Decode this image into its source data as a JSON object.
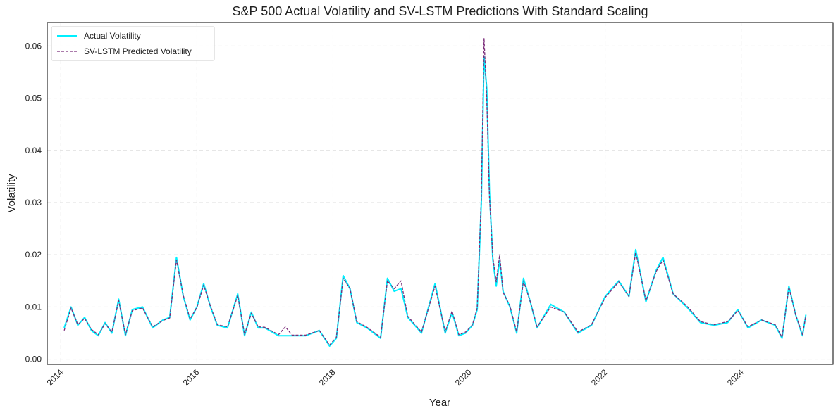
{
  "chart_data": {
    "type": "line",
    "title": "S&P 500 Actual Volatility and SV-LSTM Predictions With Standard Scaling",
    "xlabel": "Year",
    "ylabel": "Volatility",
    "xlim": [
      2013.8,
      2025.35
    ],
    "ylim": [
      -0.001,
      0.0645
    ],
    "x_ticks": [
      "2014",
      "2016",
      "2018",
      "2020",
      "2022",
      "2024"
    ],
    "y_ticks": [
      "0.00",
      "0.01",
      "0.02",
      "0.03",
      "0.04",
      "0.05",
      "0.06"
    ],
    "grid": true,
    "legend": "top-left",
    "colors": {
      "actual": "#00f0ff",
      "predicted": "#7b2d7a"
    },
    "series": [
      {
        "name": "Actual Volatility",
        "style": "solid",
        "x": [
          2014.05,
          2014.15,
          2014.25,
          2014.35,
          2014.45,
          2014.55,
          2014.65,
          2014.75,
          2014.85,
          2014.95,
          2015.05,
          2015.2,
          2015.35,
          2015.5,
          2015.6,
          2015.7,
          2015.8,
          2015.9,
          2016.0,
          2016.1,
          2016.2,
          2016.3,
          2016.45,
          2016.6,
          2016.7,
          2016.8,
          2016.9,
          2017.0,
          2017.2,
          2017.4,
          2017.6,
          2017.8,
          2017.95,
          2018.05,
          2018.15,
          2018.25,
          2018.35,
          2018.5,
          2018.7,
          2018.8,
          2018.9,
          2019.0,
          2019.1,
          2019.3,
          2019.5,
          2019.65,
          2019.75,
          2019.85,
          2019.95,
          2020.05,
          2020.12,
          2020.18,
          2020.22,
          2020.26,
          2020.3,
          2020.35,
          2020.4,
          2020.45,
          2020.5,
          2020.6,
          2020.7,
          2020.8,
          2020.9,
          2021.0,
          2021.2,
          2021.4,
          2021.6,
          2021.8,
          2022.0,
          2022.2,
          2022.35,
          2022.45,
          2022.6,
          2022.75,
          2022.85,
          2023.0,
          2023.2,
          2023.4,
          2023.6,
          2023.8,
          2023.95,
          2024.1,
          2024.3,
          2024.5,
          2024.6,
          2024.7,
          2024.8,
          2024.9,
          2024.95
        ],
        "y": [
          0.006,
          0.01,
          0.0065,
          0.008,
          0.0055,
          0.0045,
          0.007,
          0.005,
          0.0115,
          0.0045,
          0.0095,
          0.01,
          0.006,
          0.0075,
          0.008,
          0.0195,
          0.012,
          0.0075,
          0.01,
          0.0145,
          0.01,
          0.0065,
          0.006,
          0.0125,
          0.0045,
          0.009,
          0.006,
          0.006,
          0.0045,
          0.0045,
          0.0045,
          0.0055,
          0.0025,
          0.004,
          0.016,
          0.0135,
          0.007,
          0.006,
          0.004,
          0.0155,
          0.013,
          0.0135,
          0.008,
          0.005,
          0.0145,
          0.005,
          0.009,
          0.0045,
          0.005,
          0.0065,
          0.0095,
          0.03,
          0.058,
          0.052,
          0.032,
          0.019,
          0.014,
          0.019,
          0.013,
          0.01,
          0.005,
          0.0155,
          0.011,
          0.006,
          0.0105,
          0.009,
          0.005,
          0.0065,
          0.012,
          0.015,
          0.012,
          0.021,
          0.011,
          0.017,
          0.0195,
          0.0125,
          0.01,
          0.007,
          0.0065,
          0.007,
          0.0095,
          0.006,
          0.0075,
          0.0065,
          0.004,
          0.014,
          0.0085,
          0.0045,
          0.0085
        ]
      },
      {
        "name": "SV-LSTM Predicted Volatility",
        "style": "dashed",
        "x": [
          2014.05,
          2014.15,
          2014.25,
          2014.35,
          2014.45,
          2014.55,
          2014.65,
          2014.75,
          2014.85,
          2014.95,
          2015.05,
          2015.2,
          2015.35,
          2015.5,
          2015.6,
          2015.7,
          2015.8,
          2015.9,
          2016.0,
          2016.1,
          2016.2,
          2016.3,
          2016.45,
          2016.6,
          2016.7,
          2016.8,
          2016.9,
          2017.0,
          2017.2,
          2017.3,
          2017.4,
          2017.6,
          2017.8,
          2017.95,
          2018.05,
          2018.15,
          2018.25,
          2018.35,
          2018.5,
          2018.7,
          2018.8,
          2018.9,
          2019.0,
          2019.1,
          2019.3,
          2019.5,
          2019.65,
          2019.75,
          2019.85,
          2019.95,
          2020.05,
          2020.12,
          2020.18,
          2020.22,
          2020.26,
          2020.3,
          2020.35,
          2020.4,
          2020.45,
          2020.5,
          2020.6,
          2020.7,
          2020.8,
          2020.9,
          2021.0,
          2021.2,
          2021.4,
          2021.6,
          2021.8,
          2022.0,
          2022.2,
          2022.35,
          2022.45,
          2022.6,
          2022.75,
          2022.85,
          2023.0,
          2023.2,
          2023.4,
          2023.6,
          2023.8,
          2023.95,
          2024.1,
          2024.3,
          2024.5,
          2024.6,
          2024.7,
          2024.8,
          2024.9,
          2024.95
        ],
        "y": [
          0.0055,
          0.0098,
          0.0066,
          0.0078,
          0.0057,
          0.0047,
          0.0068,
          0.0052,
          0.0112,
          0.0047,
          0.0093,
          0.0098,
          0.0062,
          0.0074,
          0.0079,
          0.019,
          0.0122,
          0.0077,
          0.0099,
          0.0142,
          0.0101,
          0.0066,
          0.0062,
          0.0122,
          0.0047,
          0.0088,
          0.0062,
          0.0061,
          0.0047,
          0.0062,
          0.0046,
          0.0046,
          0.0055,
          0.0027,
          0.0042,
          0.0155,
          0.0135,
          0.0072,
          0.0061,
          0.0042,
          0.015,
          0.0135,
          0.015,
          0.0082,
          0.0052,
          0.014,
          0.0052,
          0.0092,
          0.0047,
          0.0052,
          0.0066,
          0.0098,
          0.031,
          0.0615,
          0.05,
          0.031,
          0.0195,
          0.0148,
          0.02,
          0.0128,
          0.0102,
          0.0052,
          0.015,
          0.011,
          0.0062,
          0.01,
          0.009,
          0.0052,
          0.0066,
          0.0118,
          0.0148,
          0.012,
          0.0205,
          0.0112,
          0.0168,
          0.019,
          0.0125,
          0.0102,
          0.0072,
          0.0066,
          0.0072,
          0.0093,
          0.0062,
          0.0075,
          0.0066,
          0.0042,
          0.0138,
          0.0085,
          0.0047,
          0.0083
        ]
      }
    ]
  }
}
